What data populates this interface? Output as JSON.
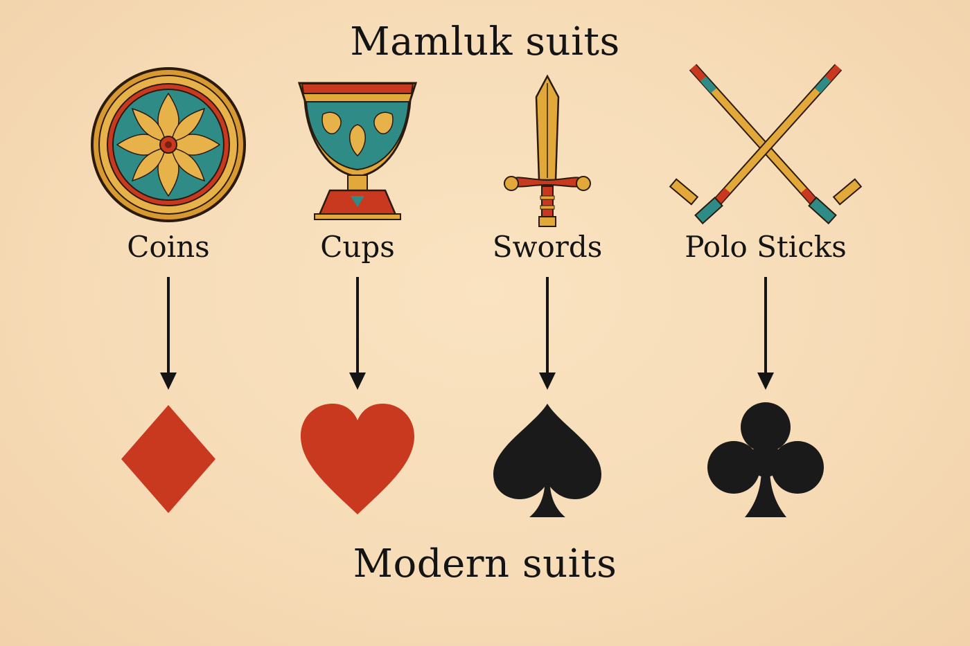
{
  "title_top": "Mamluk suits",
  "title_bottom": "Modern suits",
  "columns": [
    {
      "mamluk": "Coins",
      "mamluk_icon": "coin-icon",
      "modern_icon": "diamond-icon",
      "modern_color": "#c8391f"
    },
    {
      "mamluk": "Cups",
      "mamluk_icon": "cup-icon",
      "modern_icon": "heart-icon",
      "modern_color": "#c8391f"
    },
    {
      "mamluk": "Swords",
      "mamluk_icon": "sword-icon",
      "modern_icon": "spade-icon",
      "modern_color": "#1a1a1a"
    },
    {
      "mamluk": "Polo Sticks",
      "mamluk_icon": "polo-sticks-icon",
      "modern_icon": "club-icon",
      "modern_color": "#1a1a1a"
    }
  ],
  "colors": {
    "background": "#f6dbb6",
    "gold": "#e2a93a",
    "teal": "#2e8b86",
    "red": "#c8391f",
    "ink": "#141414"
  }
}
